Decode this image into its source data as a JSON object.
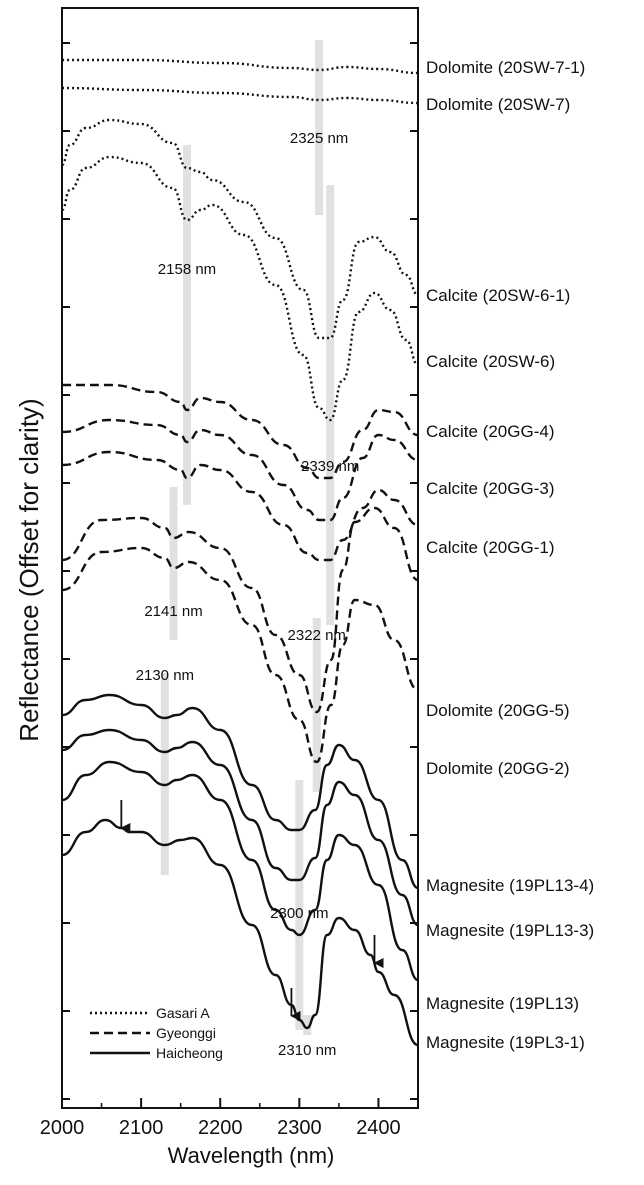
{
  "chart_data": {
    "type": "line",
    "xlabel": "Wavelength (nm)",
    "ylabel": "Reflectance (Offset for clarity)",
    "xlim": [
      2000,
      2450
    ],
    "xticks": [
      2000,
      2100,
      2200,
      2300,
      2400
    ],
    "yticks_labeled": false,
    "grid": false,
    "legend_position": "bottom-left",
    "legend": [
      {
        "label": "Gasari A",
        "style": "dotted"
      },
      {
        "label": "Gyeonggi",
        "style": "dashed"
      },
      {
        "label": "Haicheong",
        "style": "solid"
      }
    ],
    "series": [
      {
        "name": "Dolomite (20SW-7-1)",
        "group": "Gasari A",
        "style": "dotted",
        "points": [
          [
            2000,
            60
          ],
          [
            2100,
            60
          ],
          [
            2200,
            63
          ],
          [
            2290,
            68
          ],
          [
            2325,
            70
          ],
          [
            2360,
            67
          ],
          [
            2400,
            69
          ],
          [
            2450,
            73
          ]
        ]
      },
      {
        "name": "Dolomite (20SW-7)",
        "group": "Gasari A",
        "style": "dotted",
        "points": [
          [
            2000,
            88
          ],
          [
            2100,
            90
          ],
          [
            2200,
            93
          ],
          [
            2290,
            97
          ],
          [
            2325,
            100
          ],
          [
            2360,
            98
          ],
          [
            2400,
            100
          ],
          [
            2450,
            103
          ]
        ]
      },
      {
        "name": "Calcite (20SW-6-1)",
        "group": "Gasari A",
        "style": "dotted",
        "points": [
          [
            2000,
            165
          ],
          [
            2010,
            145
          ],
          [
            2030,
            128
          ],
          [
            2060,
            120
          ],
          [
            2100,
            124
          ],
          [
            2140,
            143
          ],
          [
            2158,
            168
          ],
          [
            2175,
            172
          ],
          [
            2190,
            180
          ],
          [
            2230,
            202
          ],
          [
            2270,
            238
          ],
          [
            2305,
            290
          ],
          [
            2325,
            338
          ],
          [
            2339,
            338
          ],
          [
            2355,
            300
          ],
          [
            2375,
            242
          ],
          [
            2395,
            237
          ],
          [
            2415,
            252
          ],
          [
            2435,
            275
          ],
          [
            2450,
            295
          ]
        ]
      },
      {
        "name": "Calcite (20SW-6)",
        "group": "Gasari A",
        "style": "dotted",
        "points": [
          [
            2000,
            210
          ],
          [
            2010,
            190
          ],
          [
            2030,
            168
          ],
          [
            2060,
            157
          ],
          [
            2100,
            163
          ],
          [
            2140,
            188
          ],
          [
            2158,
            220
          ],
          [
            2175,
            210
          ],
          [
            2190,
            205
          ],
          [
            2230,
            235
          ],
          [
            2270,
            285
          ],
          [
            2305,
            355
          ],
          [
            2325,
            408
          ],
          [
            2339,
            420
          ],
          [
            2355,
            380
          ],
          [
            2375,
            312
          ],
          [
            2395,
            293
          ],
          [
            2415,
            310
          ],
          [
            2435,
            340
          ],
          [
            2450,
            365
          ]
        ]
      },
      {
        "name": "Calcite (20GG-4)",
        "group": "Gyeonggi",
        "style": "dashed",
        "points": [
          [
            2000,
            385
          ],
          [
            2060,
            385
          ],
          [
            2120,
            392
          ],
          [
            2150,
            402
          ],
          [
            2158,
            410
          ],
          [
            2175,
            398
          ],
          [
            2200,
            402
          ],
          [
            2240,
            420
          ],
          [
            2280,
            445
          ],
          [
            2310,
            468
          ],
          [
            2325,
            478
          ],
          [
            2339,
            478
          ],
          [
            2355,
            462
          ],
          [
            2380,
            430
          ],
          [
            2400,
            410
          ],
          [
            2420,
            412
          ],
          [
            2450,
            435
          ]
        ]
      },
      {
        "name": "Calcite (20GG-3)",
        "group": "Gyeonggi",
        "style": "dashed",
        "points": [
          [
            2000,
            432
          ],
          [
            2060,
            420
          ],
          [
            2120,
            425
          ],
          [
            2150,
            435
          ],
          [
            2158,
            442
          ],
          [
            2175,
            430
          ],
          [
            2200,
            435
          ],
          [
            2240,
            455
          ],
          [
            2280,
            485
          ],
          [
            2310,
            510
          ],
          [
            2325,
            520
          ],
          [
            2339,
            520
          ],
          [
            2355,
            498
          ],
          [
            2380,
            458
          ],
          [
            2400,
            435
          ],
          [
            2420,
            440
          ],
          [
            2450,
            460
          ]
        ]
      },
      {
        "name": "Calcite (20GG-1)",
        "group": "Gyeonggi",
        "style": "dashed",
        "points": [
          [
            2000,
            465
          ],
          [
            2060,
            452
          ],
          [
            2120,
            460
          ],
          [
            2150,
            470
          ],
          [
            2158,
            478
          ],
          [
            2175,
            465
          ],
          [
            2200,
            470
          ],
          [
            2240,
            492
          ],
          [
            2280,
            525
          ],
          [
            2310,
            553
          ],
          [
            2325,
            560
          ],
          [
            2339,
            560
          ],
          [
            2355,
            540
          ],
          [
            2380,
            508
          ],
          [
            2400,
            490
          ],
          [
            2420,
            500
          ],
          [
            2450,
            525
          ]
        ]
      },
      {
        "name": "Dolomite (20GG-5)",
        "group": "Gyeonggi",
        "style": "dashed",
        "points": [
          [
            2000,
            560
          ],
          [
            2050,
            520
          ],
          [
            2100,
            518
          ],
          [
            2130,
            528
          ],
          [
            2141,
            538
          ],
          [
            2160,
            532
          ],
          [
            2200,
            548
          ],
          [
            2240,
            588
          ],
          [
            2270,
            635
          ],
          [
            2300,
            675
          ],
          [
            2322,
            712
          ],
          [
            2340,
            660
          ],
          [
            2355,
            570
          ],
          [
            2370,
            522
          ],
          [
            2395,
            508
          ],
          [
            2420,
            528
          ],
          [
            2450,
            580
          ]
        ]
      },
      {
        "name": "Dolomite (20GG-2)",
        "group": "Gyeonggi",
        "style": "dashed",
        "points": [
          [
            2000,
            590
          ],
          [
            2050,
            552
          ],
          [
            2100,
            548
          ],
          [
            2130,
            558
          ],
          [
            2141,
            568
          ],
          [
            2160,
            562
          ],
          [
            2200,
            580
          ],
          [
            2240,
            625
          ],
          [
            2270,
            675
          ],
          [
            2300,
            720
          ],
          [
            2322,
            762
          ],
          [
            2340,
            705
          ],
          [
            2355,
            645
          ],
          [
            2370,
            600
          ],
          [
            2395,
            605
          ],
          [
            2420,
            640
          ],
          [
            2450,
            690
          ]
        ]
      },
      {
        "name": "Magnesite (19PL13-4)",
        "group": "Haicheong",
        "style": "solid",
        "points": [
          [
            2000,
            715
          ],
          [
            2030,
            700
          ],
          [
            2060,
            695
          ],
          [
            2100,
            705
          ],
          [
            2130,
            718
          ],
          [
            2145,
            715
          ],
          [
            2165,
            708
          ],
          [
            2200,
            730
          ],
          [
            2240,
            785
          ],
          [
            2270,
            820
          ],
          [
            2290,
            830
          ],
          [
            2300,
            830
          ],
          [
            2320,
            810
          ],
          [
            2335,
            765
          ],
          [
            2350,
            745
          ],
          [
            2370,
            760
          ],
          [
            2400,
            800
          ],
          [
            2430,
            860
          ],
          [
            2450,
            888
          ]
        ]
      },
      {
        "name": "Magnesite (19PL13-3)",
        "group": "Haicheong",
        "style": "solid",
        "points": [
          [
            2000,
            750
          ],
          [
            2030,
            735
          ],
          [
            2060,
            730
          ],
          [
            2100,
            740
          ],
          [
            2130,
            752
          ],
          [
            2145,
            748
          ],
          [
            2165,
            742
          ],
          [
            2200,
            765
          ],
          [
            2240,
            820
          ],
          [
            2270,
            868
          ],
          [
            2290,
            880
          ],
          [
            2300,
            880
          ],
          [
            2320,
            858
          ],
          [
            2335,
            805
          ],
          [
            2350,
            782
          ],
          [
            2370,
            795
          ],
          [
            2400,
            840
          ],
          [
            2430,
            895
          ],
          [
            2450,
            925
          ]
        ]
      },
      {
        "name": "Magnesite (19PL13)",
        "group": "Haicheong",
        "style": "solid",
        "points": [
          [
            2000,
            800
          ],
          [
            2030,
            775
          ],
          [
            2060,
            762
          ],
          [
            2100,
            772
          ],
          [
            2130,
            785
          ],
          [
            2145,
            780
          ],
          [
            2165,
            775
          ],
          [
            2200,
            800
          ],
          [
            2240,
            860
          ],
          [
            2270,
            910
          ],
          [
            2290,
            930
          ],
          [
            2300,
            935
          ],
          [
            2320,
            910
          ],
          [
            2335,
            860
          ],
          [
            2350,
            835
          ],
          [
            2370,
            845
          ],
          [
            2400,
            885
          ],
          [
            2430,
            950
          ],
          [
            2450,
            980
          ]
        ]
      },
      {
        "name": "Magnesite (19PL3-1)",
        "group": "Haicheong",
        "style": "solid",
        "points": [
          [
            2000,
            855
          ],
          [
            2030,
            832
          ],
          [
            2055,
            820
          ],
          [
            2075,
            828
          ],
          [
            2085,
            832
          ],
          [
            2100,
            832
          ],
          [
            2130,
            845
          ],
          [
            2150,
            840
          ],
          [
            2165,
            838
          ],
          [
            2200,
            865
          ],
          [
            2240,
            925
          ],
          [
            2270,
            975
          ],
          [
            2290,
            1005
          ],
          [
            2300,
            1020
          ],
          [
            2310,
            1028
          ],
          [
            2320,
            1015
          ],
          [
            2335,
            935
          ],
          [
            2350,
            918
          ],
          [
            2370,
            930
          ],
          [
            2390,
            955
          ],
          [
            2400,
            972
          ],
          [
            2420,
            995
          ],
          [
            2450,
            1045
          ]
        ]
      }
    ],
    "annotations": [
      {
        "text": "2325 nm",
        "x": 2325
      },
      {
        "text": "2158 nm",
        "x": 2158
      },
      {
        "text": "2339 nm",
        "x": 2339
      },
      {
        "text": "2141 nm",
        "x": 2141
      },
      {
        "text": "2322 nm",
        "x": 2322
      },
      {
        "text": "2130 nm",
        "x": 2130
      },
      {
        "text": "2300 nm",
        "x": 2300
      },
      {
        "text": "2310 nm",
        "x": 2310
      }
    ],
    "arrows_at_wavelength": [
      2075,
      2290,
      2395
    ]
  }
}
